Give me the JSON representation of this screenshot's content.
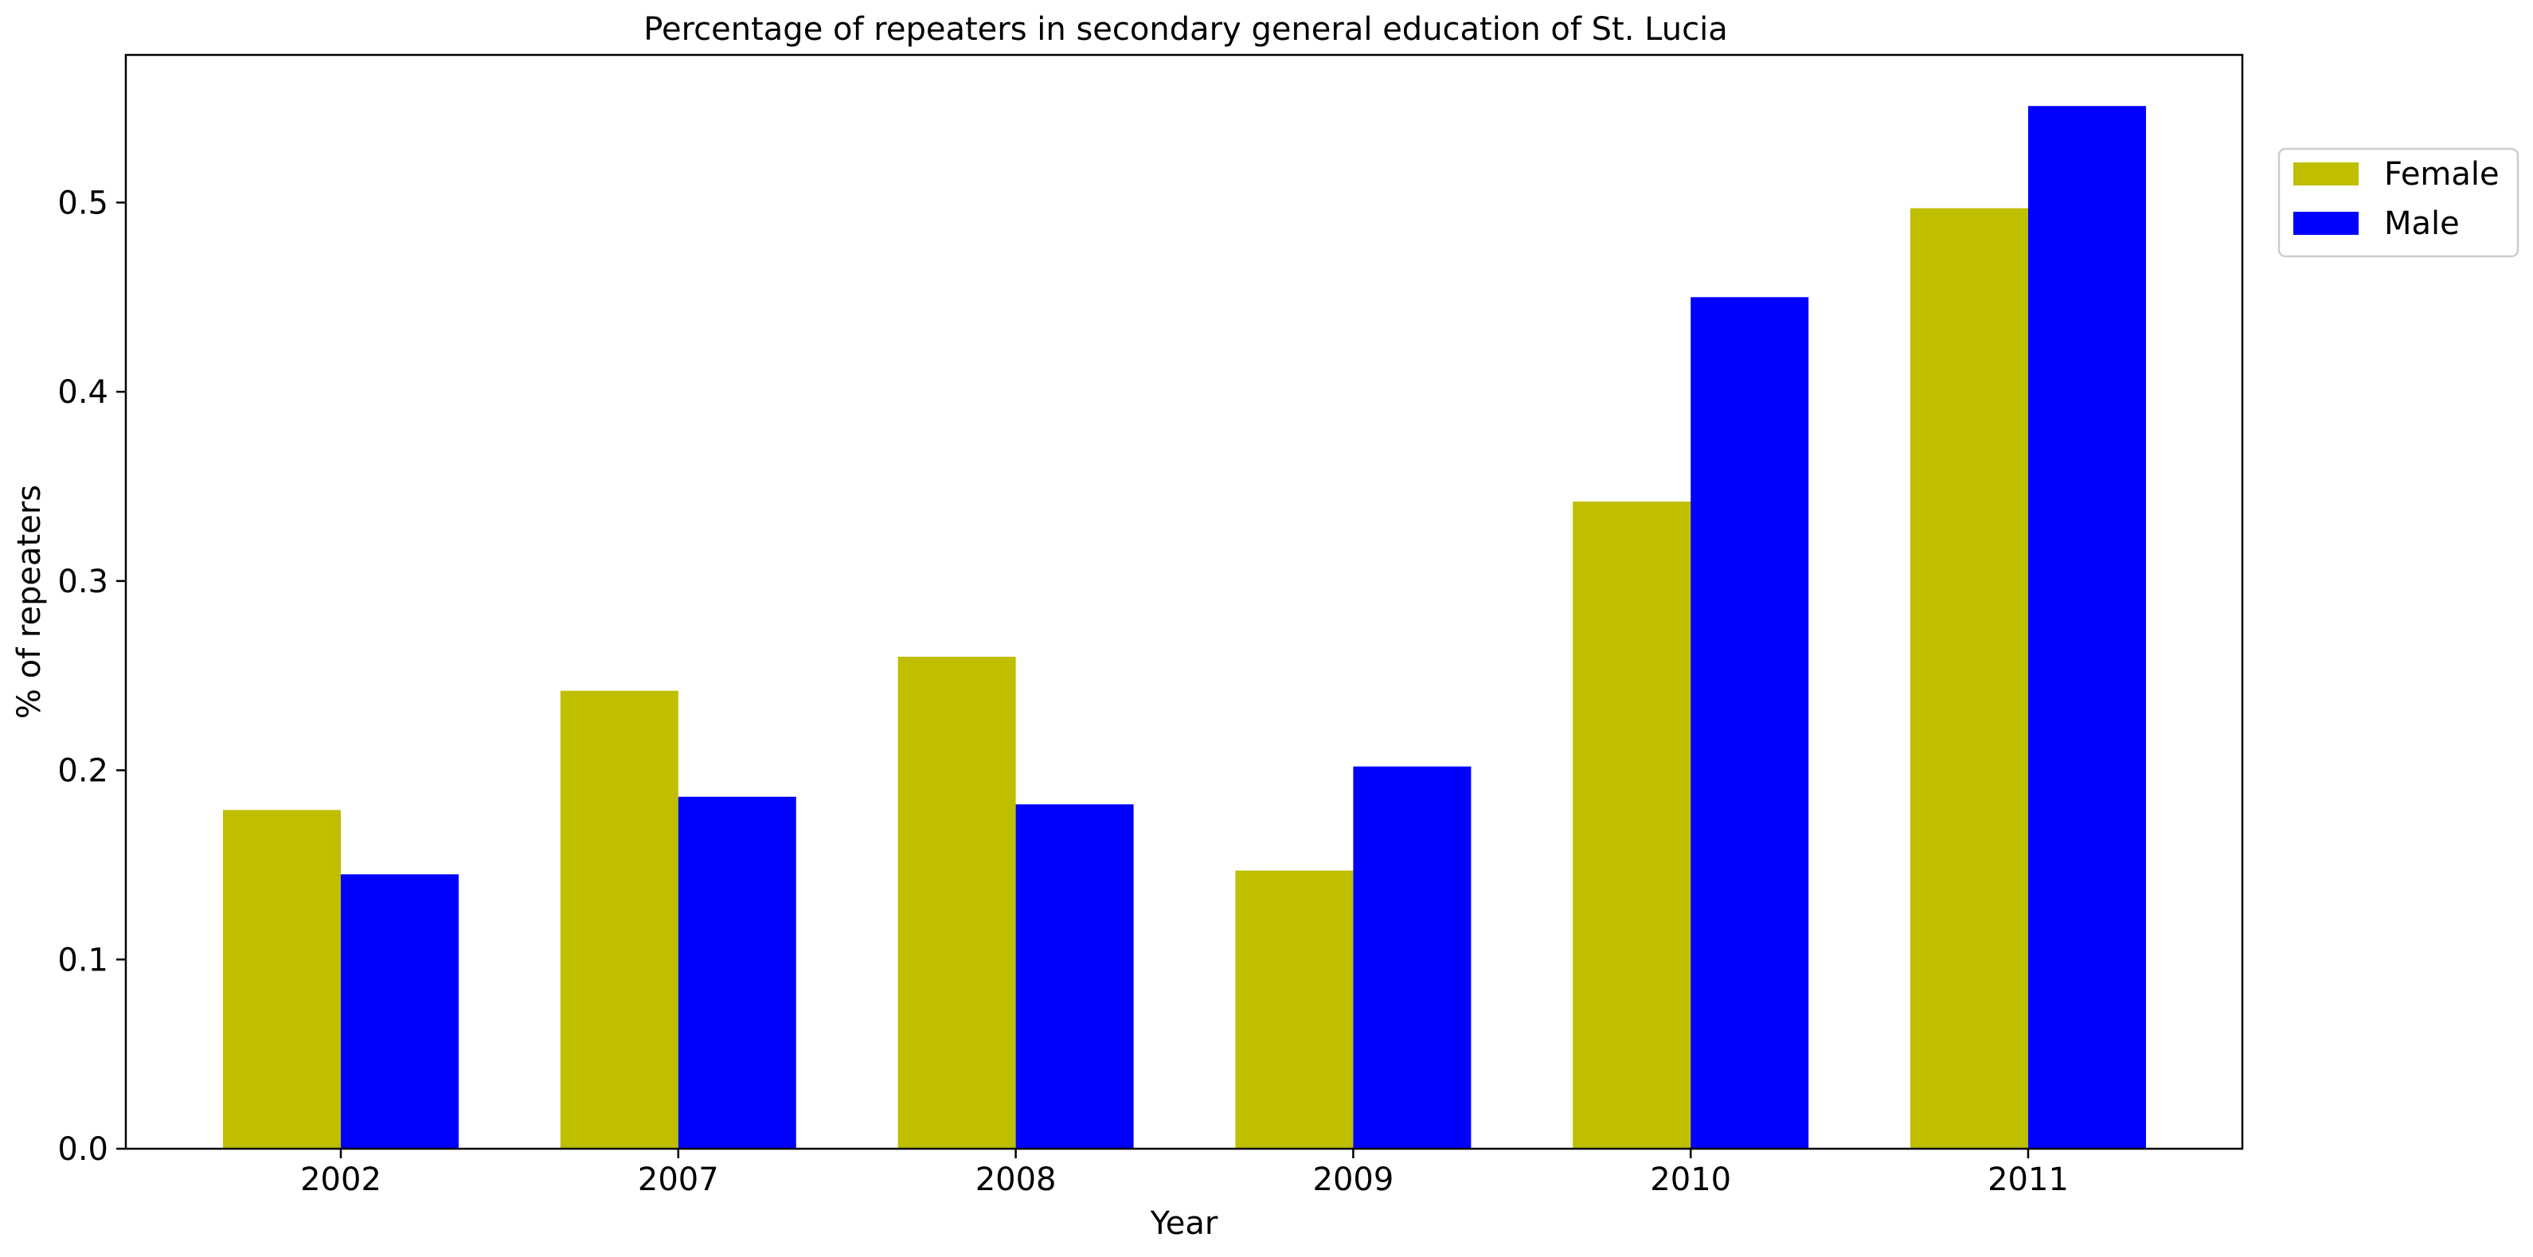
{
  "chart_data": {
    "type": "bar",
    "title": "Percentage of repeaters in secondary general education of St. Lucia",
    "xlabel": "Year",
    "ylabel": "% of repeaters",
    "categories": [
      "2002",
      "2007",
      "2008",
      "2009",
      "2010",
      "2011"
    ],
    "series": [
      {
        "name": "Female",
        "color": "#bfbf00",
        "values": [
          0.179,
          0.242,
          0.26,
          0.147,
          0.342,
          0.497
        ]
      },
      {
        "name": "Male",
        "color": "#0000ff",
        "values": [
          0.145,
          0.186,
          0.182,
          0.202,
          0.45,
          0.551
        ]
      }
    ],
    "ylim": [
      0,
      0.578
    ],
    "yticks": [
      "0.0",
      "0.1",
      "0.2",
      "0.3",
      "0.4",
      "0.5"
    ],
    "grid": false,
    "legend_position": "upper right, outside plot"
  }
}
